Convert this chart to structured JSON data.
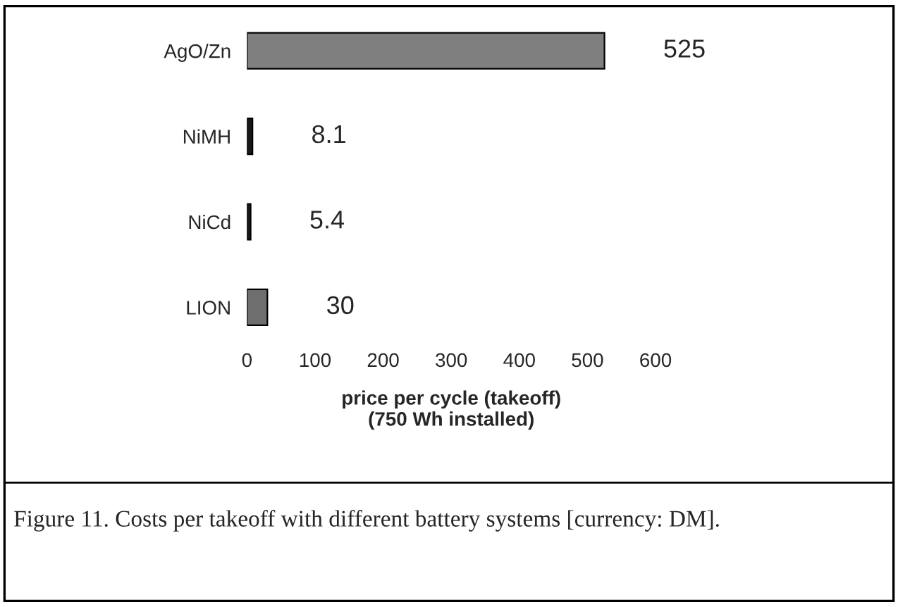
{
  "chart_data": {
    "type": "bar",
    "orientation": "horizontal",
    "categories": [
      "AgO/Zn",
      "NiMH",
      "NiCd",
      "LION"
    ],
    "values": [
      525,
      8.1,
      5.4,
      30
    ],
    "colors": [
      "#7f7f7f",
      "#1a1a1a",
      "#1a1a1a",
      "#6e6e6e"
    ],
    "xlim": [
      0,
      600
    ],
    "xticks": [
      0,
      100,
      200,
      300,
      400,
      500,
      600
    ],
    "xlabel": "price per cycle (takeoff)\n(750 Wh installed)",
    "data_labels": true,
    "grid": false,
    "legend": false,
    "annotations": [
      "Figure 11. Costs per takeoff with different battery systems [currency: DM]."
    ]
  }
}
